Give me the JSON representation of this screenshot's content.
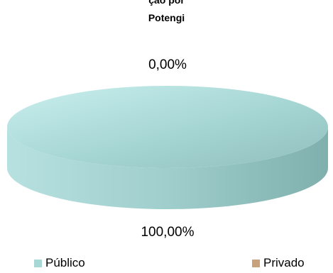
{
  "chart_data": {
    "type": "pie",
    "title_partial": "ção por",
    "subtitle": "Potengi",
    "categories": [
      "Público",
      "Privado"
    ],
    "values": [
      100.0,
      0.0
    ],
    "data_labels": [
      "100,00%",
      "0,00%"
    ],
    "colors": [
      "#a8d8d6",
      "#c7a27c"
    ],
    "legend_position": "bottom",
    "style": "3d"
  }
}
